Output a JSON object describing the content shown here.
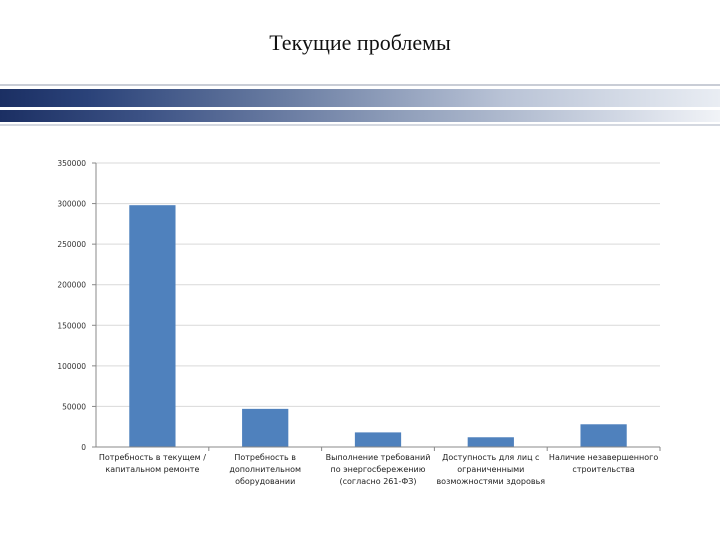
{
  "slide": {
    "title": "Текущие проблемы"
  },
  "colors": {
    "bar": "#4F81BD",
    "navy": "#1F3864",
    "gridline": "#D9D9D9"
  },
  "chart_data": {
    "type": "bar",
    "title": "",
    "xlabel": "",
    "ylabel": "",
    "ylim": [
      0,
      350000
    ],
    "yticks": [
      0,
      50000,
      100000,
      150000,
      200000,
      250000,
      300000,
      350000
    ],
    "grid": true,
    "legend": "none",
    "categories": [
      [
        "Потребность в текущем /",
        "капитальном ремонте"
      ],
      [
        "Потребность в",
        "дополнительном",
        "оборудовании"
      ],
      [
        "Выполнение требований",
        "по энергосбережению",
        "(согласно 261-ФЗ)"
      ],
      [
        "Доступность для лиц с",
        "ограниченными",
        "возможностями здоровья"
      ],
      [
        "Наличие незавершенного",
        "строительства"
      ]
    ],
    "values": [
      298000,
      47000,
      18000,
      12000,
      28000
    ]
  }
}
